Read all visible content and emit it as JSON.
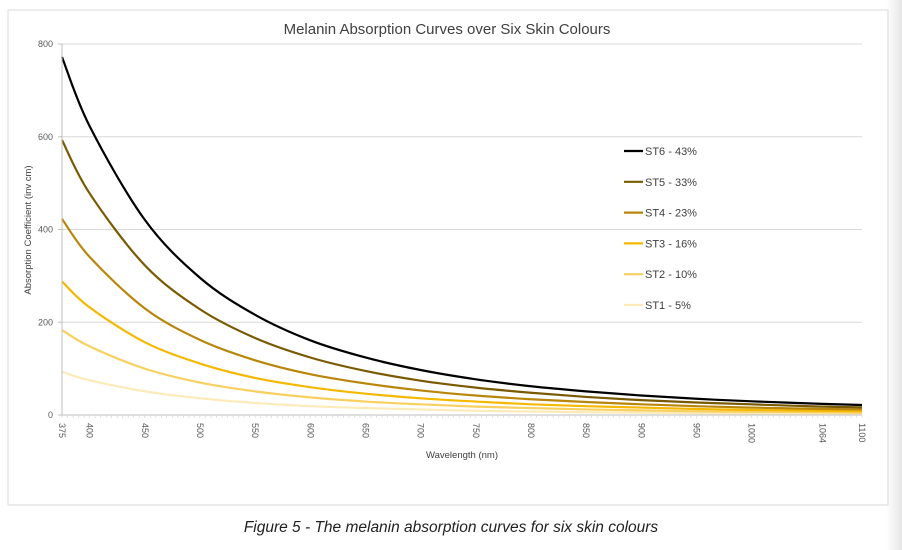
{
  "chart_data": {
    "type": "line",
    "title": "Melanin Absorption Curves over Six Skin Colours",
    "xlabel": "Wavelength (nm)",
    "ylabel": "Absorption Coefficient  (inv cm)",
    "x_ticks": [
      375,
      400,
      450,
      500,
      550,
      600,
      650,
      700,
      750,
      800,
      850,
      900,
      950,
      1000,
      1064,
      1100
    ],
    "xlim": [
      375,
      1100
    ],
    "y_ticks": [
      0,
      200,
      400,
      600,
      800
    ],
    "ylim": [
      0,
      800
    ],
    "grid": "horizontal",
    "legend_position": "right",
    "x": [
      375,
      400,
      450,
      500,
      550,
      600,
      650,
      700,
      750,
      800,
      850,
      900,
      950,
      1000,
      1064,
      1100
    ],
    "series": [
      {
        "name": "ST6 - 43%",
        "color": "#000000",
        "values": [
          772,
          623,
          421,
          296,
          216,
          161,
          124,
          97,
          77,
          62,
          51,
          42,
          35,
          29.5,
          24,
          21.5
        ]
      },
      {
        "name": "ST5 - 33%",
        "color": "#7a5a00",
        "values": [
          593,
          478,
          323,
          228,
          166,
          124,
          95,
          74,
          59,
          48,
          39,
          32,
          27,
          23,
          18,
          16.5
        ]
      },
      {
        "name": "ST4 - 23%",
        "color": "#b8860b",
        "values": [
          423,
          341,
          230,
          162,
          118,
          88,
          68,
          53,
          42,
          34,
          28,
          23,
          19,
          16,
          13,
          12
        ]
      },
      {
        "name": "ST3 - 16%",
        "color": "#f5b800",
        "values": [
          288,
          232,
          157,
          111,
          80,
          60,
          46,
          36,
          29,
          23,
          19,
          16,
          13,
          11,
          9,
          8
        ]
      },
      {
        "name": "ST2 - 10%",
        "color": "#f8d060",
        "values": [
          183,
          148,
          100,
          70,
          51,
          38,
          29,
          23,
          18,
          15,
          12,
          10,
          8,
          7,
          6,
          5
        ]
      },
      {
        "name": "ST1 - 5%",
        "color": "#fcebb8",
        "values": [
          93,
          75,
          51,
          36,
          26,
          19,
          15,
          12,
          9,
          7.5,
          6,
          5,
          4,
          3.5,
          3,
          2.6
        ]
      }
    ]
  },
  "caption": "Figure 5 - The melanin absorption curves for six skin colours"
}
